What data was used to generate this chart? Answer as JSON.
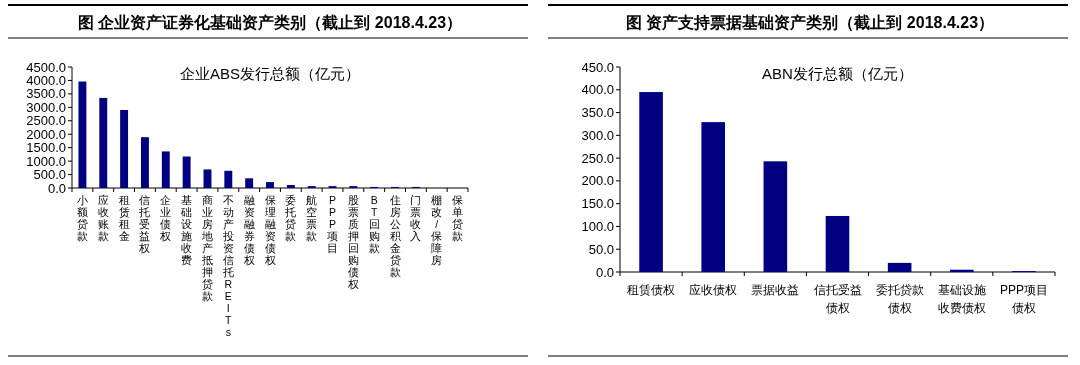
{
  "chart_data": [
    {
      "type": "bar",
      "title": "图  企业资产证券化基础资产类别（截止到 2018.4.23）",
      "annotations": [
        "企业ABS发行总额（亿元）"
      ],
      "categories": [
        "小额贷款",
        "应收账款",
        "租赁租金",
        "信托受益权",
        "企业债权",
        "基础设施收费",
        "商业房地产抵押贷款",
        "不动产投资信托REITs",
        "融资融券债权",
        "保理融资债权",
        "委托贷款",
        "航空票款",
        "PPP项目",
        "股票质押回购债权",
        "BT回购款",
        "住房公积金贷款",
        "门票收入",
        "棚改/保障房",
        "保单贷款"
      ],
      "values": [
        3960,
        3350,
        2900,
        1890,
        1360,
        1170,
        690,
        640,
        360,
        220,
        110,
        70,
        70,
        70,
        40,
        40,
        40,
        0,
        0
      ],
      "color": "#000080",
      "ylim": [
        0,
        4500
      ],
      "yticks": [
        {
          "value": 0,
          "label": "0.0"
        },
        {
          "value": 500,
          "label": "500.0"
        },
        {
          "value": 1000,
          "label": "1000.0"
        },
        {
          "value": 1500,
          "label": "1500.0"
        },
        {
          "value": 2000,
          "label": "2000.0"
        },
        {
          "value": 2500,
          "label": "2500.0"
        },
        {
          "value": 3000,
          "label": "3000.0"
        },
        {
          "value": 3500,
          "label": "3500.0"
        },
        {
          "value": 4000,
          "label": "4000.0"
        },
        {
          "value": 4500,
          "label": "4500.0"
        }
      ]
    },
    {
      "type": "bar",
      "title": "图  资产支持票据基础资产类别（截止到 2018.4.23）",
      "annotations": [
        "ABN发行总额（亿元）"
      ],
      "categories": [
        "租赁债权",
        "应收债权",
        "票据收益",
        "信托受益债权",
        "委托贷款债权",
        "基础设施收费债权",
        "PPP项目债权"
      ],
      "values": [
        395,
        329,
        243,
        123,
        20,
        5,
        2
      ],
      "color": "#000080",
      "ylim": [
        0,
        450
      ],
      "yticks": [
        {
          "value": 0,
          "label": "0.0"
        },
        {
          "value": 50,
          "label": "50.0"
        },
        {
          "value": 100,
          "label": "100.0"
        },
        {
          "value": 150,
          "label": "150.0"
        },
        {
          "value": 200,
          "label": "200.0"
        },
        {
          "value": 250,
          "label": "250.0"
        },
        {
          "value": 300,
          "label": "300.0"
        },
        {
          "value": 350,
          "label": "350.0"
        },
        {
          "value": 400,
          "label": "400.0"
        },
        {
          "value": 450,
          "label": "450.0"
        }
      ]
    }
  ]
}
